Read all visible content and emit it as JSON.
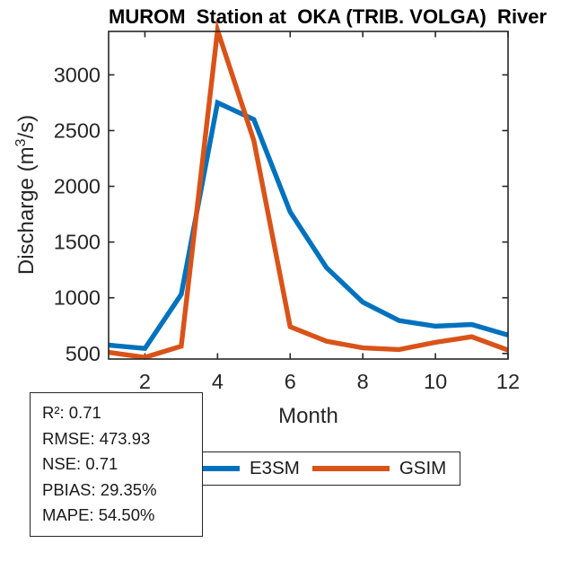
{
  "title": "MUROM  Station at  OKA (TRIB. VOLGA)  River",
  "chart_data": {
    "type": "line",
    "title": "MUROM  Station at  OKA (TRIB. VOLGA)  River",
    "xlabel": "Month",
    "ylabel": "Discharge (m³/s)",
    "ylabel_parts": {
      "pre": "Discharge (m",
      "sup": "3",
      "post": "/s)"
    },
    "x": [
      1,
      2,
      3,
      4,
      5,
      6,
      7,
      8,
      9,
      10,
      11,
      12
    ],
    "series": [
      {
        "name": "E3SM",
        "color": "#0072BD",
        "values": [
          575,
          545,
          1030,
          2750,
          2600,
          1770,
          1270,
          960,
          795,
          745,
          760,
          665
        ]
      },
      {
        "name": "GSIM",
        "color": "#D95319",
        "values": [
          510,
          465,
          565,
          3400,
          2410,
          740,
          610,
          550,
          535,
          600,
          650,
          530
        ]
      }
    ],
    "xticks": [
      2,
      4,
      6,
      8,
      10,
      12
    ],
    "yticks": [
      500,
      1000,
      1500,
      2000,
      2500,
      3000
    ],
    "xlim": [
      1,
      12
    ],
    "ylim": [
      450,
      3390
    ],
    "grid": false,
    "legend_position": "bottom-center",
    "axis_color": "#262626"
  },
  "stats_box": {
    "lines": [
      "R²: 0.71",
      "RMSE: 473.93",
      "NSE: 0.71",
      "PBIAS: 29.35%",
      "MAPE: 54.50%"
    ]
  }
}
